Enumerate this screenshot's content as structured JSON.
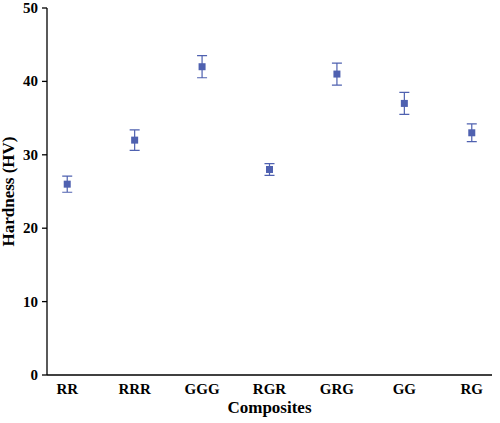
{
  "chart_data": {
    "type": "scatter",
    "x_label": "Composites",
    "y_label": "Hardness (HV)",
    "categories": [
      "RR",
      "RRR",
      "GGG",
      "RGR",
      "GRG",
      "GG",
      "RG"
    ],
    "values": [
      26,
      32,
      42,
      28,
      41,
      37,
      33
    ],
    "errors": [
      1.1,
      1.4,
      1.5,
      0.8,
      1.5,
      1.5,
      1.2
    ],
    "color": "#4f61b0",
    "marker": "square",
    "ylim": [
      0,
      50
    ],
    "yticks": [
      0,
      10,
      20,
      30,
      40,
      50
    ],
    "grid": false
  }
}
